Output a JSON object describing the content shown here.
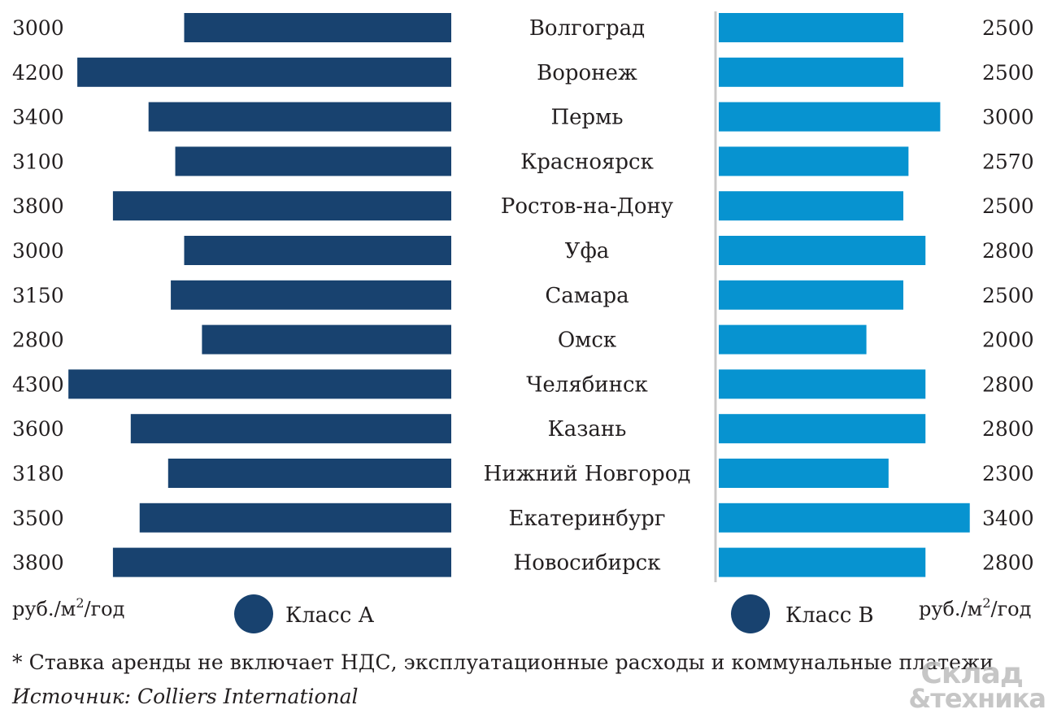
{
  "chart_data": {
    "type": "bar",
    "categories": [
      "Волгоград",
      "Воронеж",
      "Пермь",
      "Красноярск",
      "Ростов-на-Дону",
      "Уфа",
      "Самара",
      "Омск",
      "Челябинск",
      "Казань",
      "Нижний Новгород",
      "Екатеринбург",
      "Новосибирск"
    ],
    "series": [
      {
        "name": "Класс А",
        "values": [
          3000,
          4200,
          3400,
          3100,
          3800,
          3000,
          3150,
          2800,
          4300,
          3600,
          3180,
          3500,
          3800
        ],
        "color": "#18426f"
      },
      {
        "name": "Класс В",
        "values": [
          2500,
          2500,
          3000,
          2570,
          2500,
          2800,
          2500,
          2000,
          2800,
          2800,
          2300,
          3400,
          2800
        ],
        "color": "#0793d0"
      }
    ],
    "orientation": "horizontal-butterfly",
    "left_unit": "руб./м²/год",
    "right_unit": "руб./м²/год",
    "legend_position": "bottom"
  },
  "footnote": "* Ставка аренды не включает НДС, эксплуатационные расходы и коммунальные платежи",
  "source": "Источник: Colliers International",
  "logo": {
    "line1": "Склад",
    "line2": "&техника"
  },
  "colors": {
    "class_a": "#18426f",
    "class_b": "#0793d0",
    "divider": "#c8c8c8",
    "logo": "#bdbdbd"
  }
}
